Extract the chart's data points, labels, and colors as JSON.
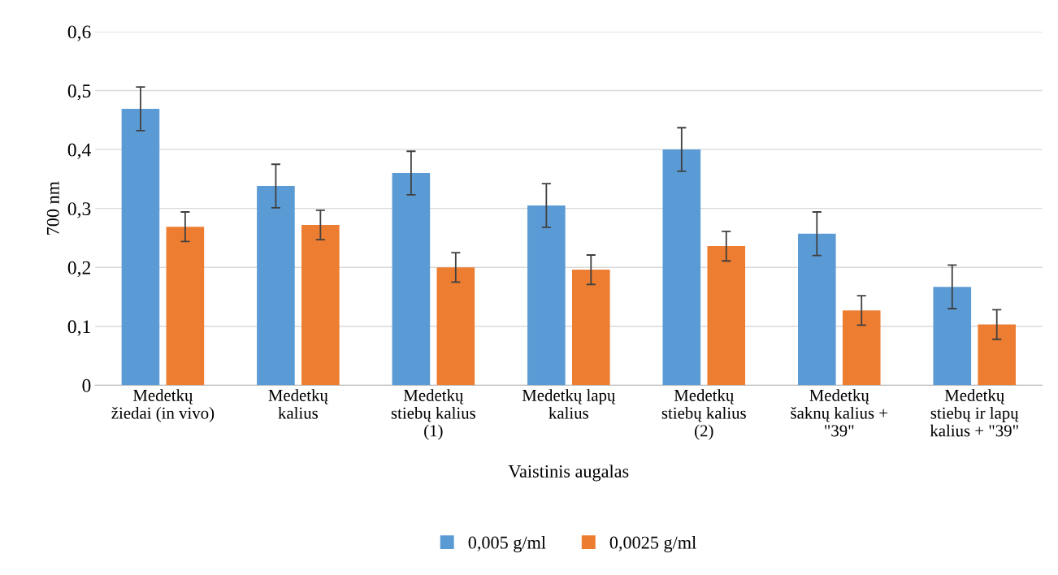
{
  "chart_data": {
    "type": "bar",
    "xlabel": "Vaistinis augalas",
    "ylabel": "700 nm",
    "categories": [
      "Medetkų\nžiedai (in vivo)",
      "Medetkų\nkalius",
      "Medetkų\nstiebų kalius\n(1)",
      "Medetkų lapų\nkalius",
      "Medetkų\nstiebų kalius\n(2)",
      "Medetkų\nšaknų kalius +\n\"39\"",
      "Medetkų\nstiebų ir lapų\nkalius + \"39\""
    ],
    "series": [
      {
        "name": "0,005 g/ml",
        "color": "#5b9bd5",
        "values": [
          0.469,
          0.338,
          0.36,
          0.305,
          0.4,
          0.257,
          0.167
        ],
        "errors": [
          0.037,
          0.037,
          0.037,
          0.037,
          0.037,
          0.037,
          0.037
        ]
      },
      {
        "name": "0,0025 g/ml",
        "color": "#ed7d31",
        "values": [
          0.269,
          0.272,
          0.2,
          0.196,
          0.236,
          0.127,
          0.103
        ],
        "errors": [
          0.025,
          0.025,
          0.025,
          0.025,
          0.025,
          0.025,
          0.025
        ]
      }
    ],
    "ylim": [
      0,
      0.6
    ],
    "yticks": [
      0,
      {
        "value": 0.1,
        "label": "0,1"
      },
      {
        "value": 0.2,
        "label": "0,2"
      },
      {
        "value": 0.3,
        "label": "0,3"
      },
      {
        "value": 0.4,
        "label": "0,4"
      },
      {
        "value": 0.5,
        "label": "0,5"
      },
      {
        "value": 0.6,
        "label": "0,6"
      }
    ],
    "grid": "y",
    "legend": "bottom"
  }
}
